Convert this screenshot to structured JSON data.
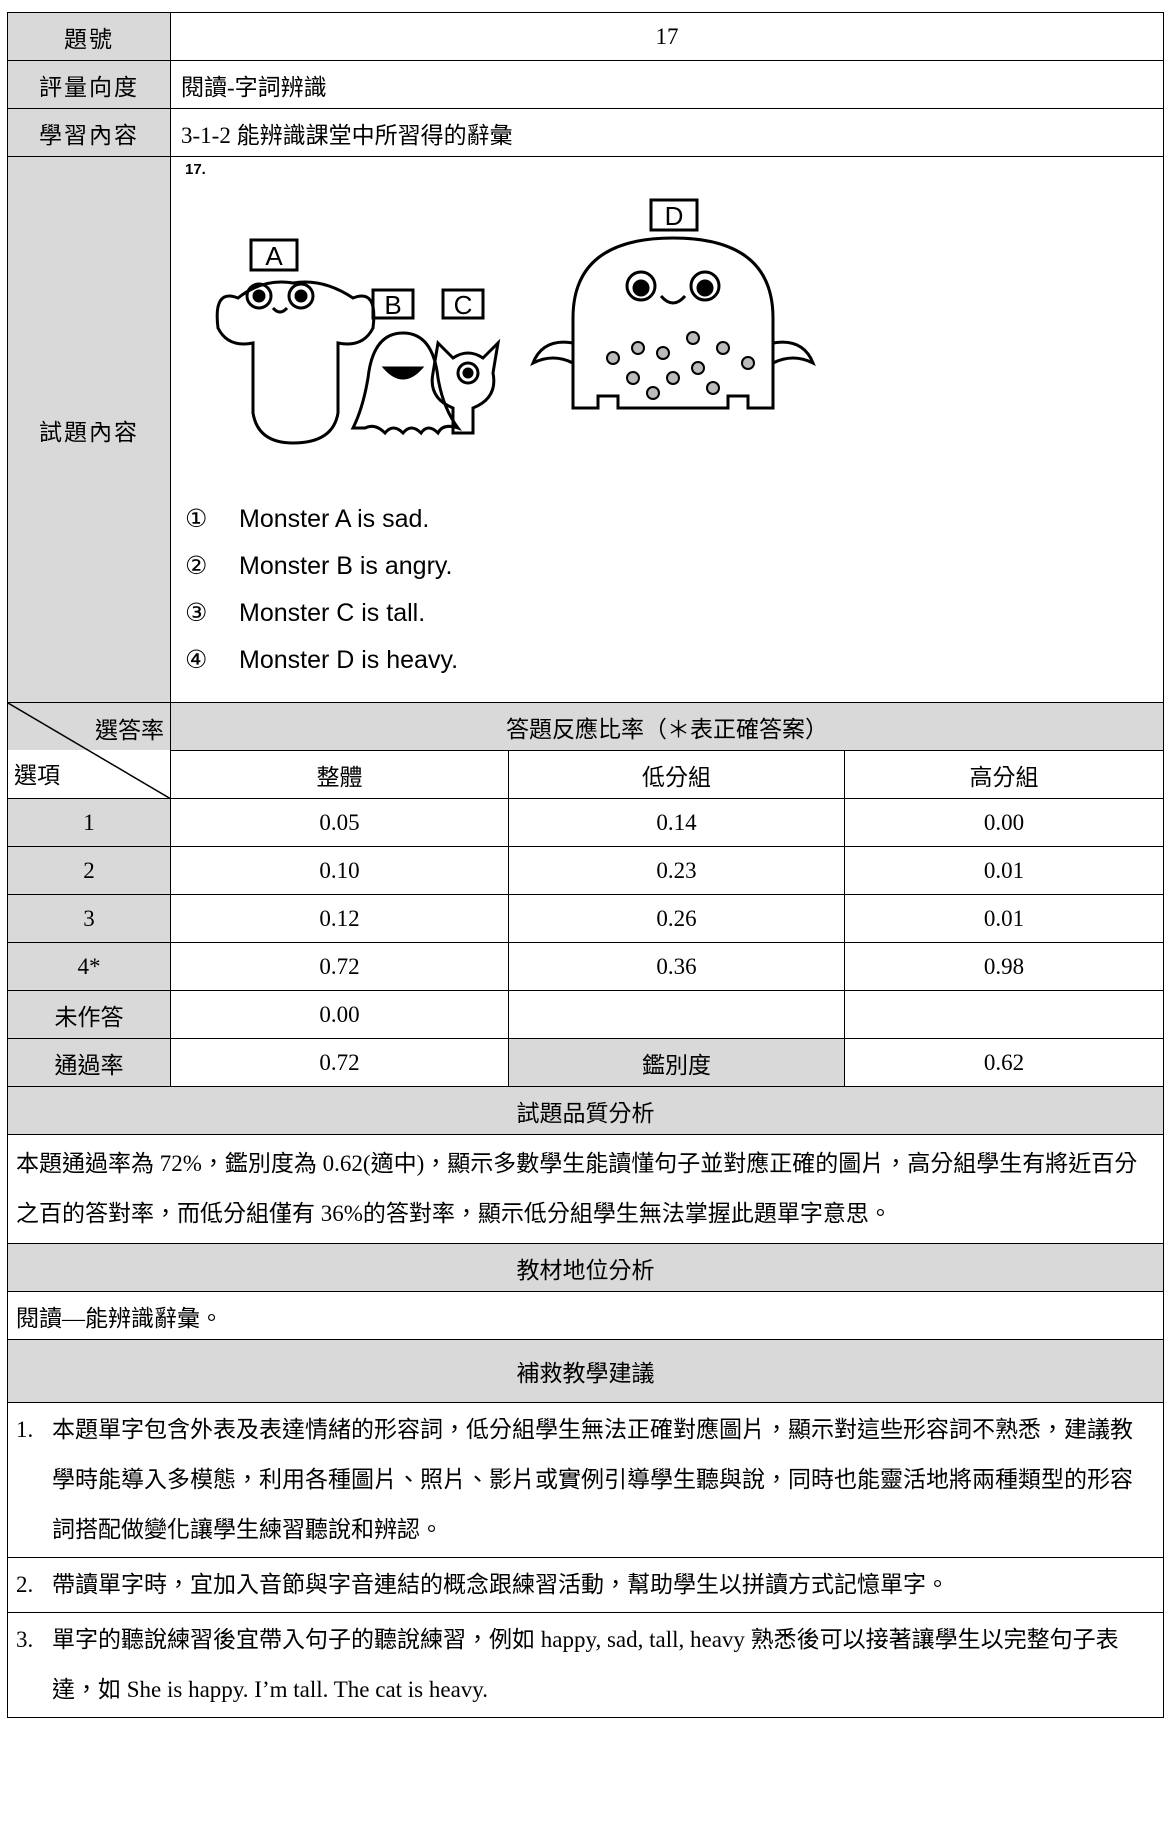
{
  "header": [
    {
      "label": "題號",
      "value": "17"
    },
    {
      "label": "評量向度",
      "value": "閱讀-字詞辨識"
    },
    {
      "label": "學習內容",
      "value": "3-1-2 能辨識課堂中所習得的辭彙"
    }
  ],
  "item": {
    "label": "試題內容",
    "number": "17.",
    "figure_labels": [
      "A",
      "B",
      "C",
      "D"
    ],
    "options": [
      {
        "marker": "①",
        "text": "Monster A is sad."
      },
      {
        "marker": "②",
        "text": "Monster B is angry."
      },
      {
        "marker": "③",
        "text": "Monster C is tall."
      },
      {
        "marker": "④",
        "text": "Monster D is heavy."
      }
    ]
  },
  "response": {
    "corner_top": "選答率",
    "corner_bottom": "選項",
    "title": "答題反應比率（＊表正確答案）",
    "columns": [
      "整體",
      "低分組",
      "高分組"
    ],
    "rows": [
      [
        "1",
        "0.05",
        "0.14",
        "0.00"
      ],
      [
        "2",
        "0.10",
        "0.23",
        "0.01"
      ],
      [
        "3",
        "0.12",
        "0.26",
        "0.01"
      ],
      [
        "4*",
        "0.72",
        "0.36",
        "0.98"
      ],
      [
        "未作答",
        "0.00"
      ],
      [
        "通過率",
        "0.72",
        "鑑別度",
        "0.62"
      ]
    ]
  },
  "quality": {
    "title": "試題品質分析",
    "text": "本題通過率為 72%，鑑別度為 0.62(適中)，顯示多數學生能讀懂句子並對應正確的圖片，高分組學生有將近百分之百的答對率，而低分組僅有 36%的答對率，顯示低分組學生無法掌握此題單字意思。"
  },
  "position": {
    "title": "教材地位分析",
    "text": "閱讀—能辨識辭彙。"
  },
  "remedial": {
    "title": "補救教學建議",
    "items": [
      {
        "number": "1.",
        "text": "本題單字包含外表及表達情緒的形容詞，低分組學生無法正確對應圖片，顯示對這些形容詞不熟悉，建議教學時能導入多模態，利用各種圖片、照片、影片或實例引導學生聽與說，同時也能靈活地將兩種類型的形容詞搭配做變化讓學生練習聽說和辨認。"
      },
      {
        "number": "2.",
        "text": "帶讀單字時，宜加入音節與字音連結的概念跟練習活動，幫助學生以拼讀方式記憶單字。"
      },
      {
        "number": "3.",
        "text": "單字的聽說練習後宜帶入句子的聽說練習，例如 happy, sad, tall, heavy 熟悉後可以接著讓學生以完整句子表達，如 She is happy. I’m tall. The cat is heavy."
      }
    ]
  }
}
